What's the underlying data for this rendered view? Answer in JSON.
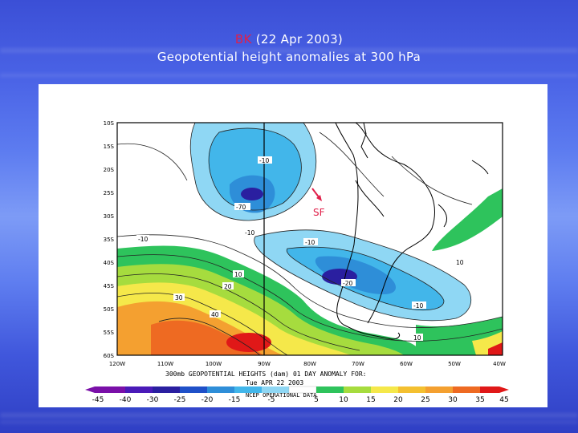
{
  "title": {
    "case_code": "BK",
    "date": "(22 Apr 2003)",
    "subtitle": "Geopotential height anomalies at 300 hPa"
  },
  "map": {
    "lat_labels": [
      "10S",
      "15S",
      "20S",
      "25S",
      "30S",
      "35S",
      "40S",
      "45S",
      "50S",
      "55S",
      "60S"
    ],
    "lon_labels": [
      "120W",
      "110W",
      "100W",
      "90W",
      "80W",
      "70W",
      "60W",
      "50W",
      "40W"
    ],
    "caption_line1": "300mb GEOPOTENTIAL HEIGHTS (dam)   01 DAY ANOMALY FOR:",
    "caption_line2": "Tue APR 22 2003",
    "source_label": "NCEP OPERATIONAL DATA",
    "contour_labels": [
      "-10",
      "-70",
      "-10",
      "-10",
      "-10",
      "-20",
      "-10",
      "10",
      "20",
      "30",
      "40",
      "10",
      "10"
    ],
    "marker_label": "SF",
    "colorbar_ticks": [
      "-45",
      "-40",
      "-30",
      "-25",
      "-20",
      "-15",
      "-5",
      "5",
      "10",
      "15",
      "20",
      "25",
      "30",
      "35",
      "45"
    ],
    "colors": {
      "deep_negative": "#2a1fa0",
      "negative": "#42b6ea",
      "positive_green": "#2ec35c",
      "positive_yellow": "#f5e84a",
      "positive_orange": "#f4a030",
      "max_positive": "#e01818",
      "marker": "#e0204a"
    }
  }
}
